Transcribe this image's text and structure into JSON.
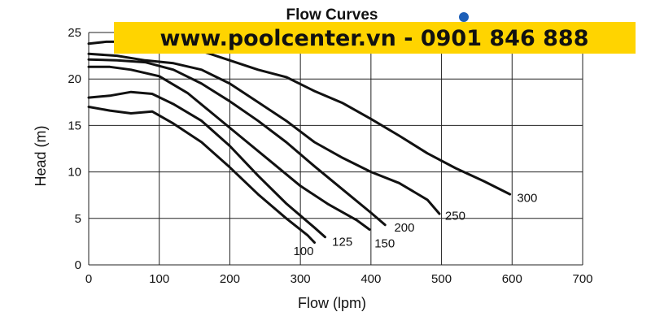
{
  "chart_data": {
    "type": "line",
    "title": "Flow Curves",
    "xlabel": "Flow (lpm)",
    "ylabel": "Head (m)",
    "xlim": [
      0,
      700
    ],
    "ylim": [
      0,
      25
    ],
    "xticks": [
      0,
      100,
      200,
      300,
      400,
      500,
      600,
      700
    ],
    "yticks": [
      0,
      5,
      10,
      15,
      20,
      25
    ],
    "grid": true,
    "series": [
      {
        "name": "100",
        "label_at": [
          290,
          1.5
        ],
        "points": [
          [
            0,
            17
          ],
          [
            30,
            16.6
          ],
          [
            60,
            16.3
          ],
          [
            90,
            16.5
          ],
          [
            120,
            15.2
          ],
          [
            160,
            13.2
          ],
          [
            200,
            10.5
          ],
          [
            240,
            7.6
          ],
          [
            280,
            5
          ],
          [
            310,
            3.2
          ],
          [
            320,
            2.4
          ]
        ]
      },
      {
        "name": "125",
        "label_at": [
          345,
          2.5
        ],
        "points": [
          [
            0,
            18
          ],
          [
            30,
            18.2
          ],
          [
            60,
            18.6
          ],
          [
            90,
            18.4
          ],
          [
            120,
            17.3
          ],
          [
            160,
            15.5
          ],
          [
            200,
            12.8
          ],
          [
            240,
            9.6
          ],
          [
            280,
            6.6
          ],
          [
            320,
            4
          ],
          [
            335,
            3
          ]
        ]
      },
      {
        "name": "150",
        "label_at": [
          405,
          2.3
        ],
        "points": [
          [
            0,
            21.3
          ],
          [
            30,
            21.3
          ],
          [
            60,
            21
          ],
          [
            100,
            20.3
          ],
          [
            140,
            18.5
          ],
          [
            180,
            16
          ],
          [
            220,
            13.5
          ],
          [
            260,
            11
          ],
          [
            300,
            8.5
          ],
          [
            340,
            6.5
          ],
          [
            380,
            4.8
          ],
          [
            398,
            3.8
          ]
        ]
      },
      {
        "name": "200",
        "label_at": [
          433,
          4
        ],
        "points": [
          [
            0,
            22.1
          ],
          [
            40,
            22
          ],
          [
            80,
            21.8
          ],
          [
            120,
            21
          ],
          [
            160,
            19.5
          ],
          [
            200,
            17.6
          ],
          [
            240,
            15.5
          ],
          [
            280,
            13.2
          ],
          [
            320,
            10.6
          ],
          [
            360,
            8.1
          ],
          [
            400,
            5.6
          ],
          [
            420,
            4.3
          ]
        ]
      },
      {
        "name": "250",
        "label_at": [
          505,
          5.3
        ],
        "points": [
          [
            0,
            22.7
          ],
          [
            40,
            22.5
          ],
          [
            80,
            22
          ],
          [
            120,
            21.7
          ],
          [
            160,
            21
          ],
          [
            200,
            19.5
          ],
          [
            240,
            17.5
          ],
          [
            280,
            15.5
          ],
          [
            320,
            13.2
          ],
          [
            360,
            11.5
          ],
          [
            400,
            10
          ],
          [
            440,
            8.8
          ],
          [
            480,
            7
          ],
          [
            497,
            5.5
          ]
        ]
      },
      {
        "name": "300",
        "label_at": [
          607,
          7.2
        ],
        "points": [
          [
            0,
            23.8
          ],
          [
            25,
            24
          ],
          [
            40,
            24
          ],
          [
            80,
            23.6
          ],
          [
            120,
            23.5
          ],
          [
            160,
            23
          ],
          [
            200,
            22
          ],
          [
            240,
            21
          ],
          [
            280,
            20.2
          ],
          [
            320,
            18.7
          ],
          [
            360,
            17.4
          ],
          [
            400,
            15.7
          ],
          [
            440,
            13.9
          ],
          [
            480,
            12
          ],
          [
            520,
            10.4
          ],
          [
            560,
            9
          ],
          [
            597,
            7.6
          ]
        ]
      }
    ]
  },
  "banner": {
    "text": "www.poolcenter.vn -  0901 846 888",
    "background": "#ffd400"
  },
  "colors": {
    "curve": "#111111",
    "grid": "#222222",
    "dot": "#1d5fb8"
  }
}
